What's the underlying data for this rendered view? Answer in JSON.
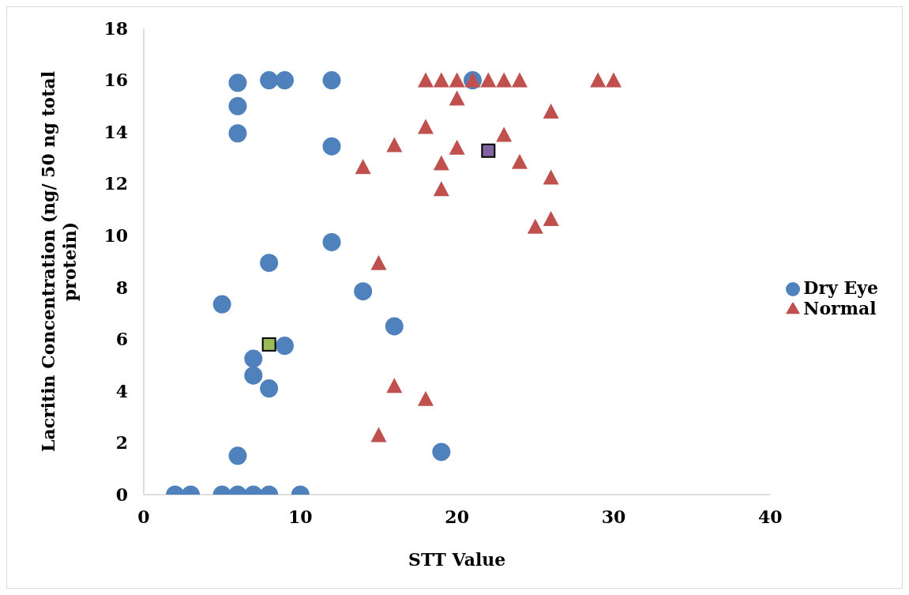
{
  "chart_data": {
    "type": "scatter",
    "xlabel": "STT Value",
    "ylabel": "Lacritin Concentration (ng/ 50 ng total protein)",
    "xlim": [
      0,
      40
    ],
    "xticks": [
      0,
      10,
      20,
      30,
      40
    ],
    "ylim": [
      0,
      18
    ],
    "yticks": [
      0,
      2,
      4,
      6,
      8,
      10,
      12,
      14,
      16,
      18
    ],
    "grid": false,
    "legend": "right",
    "series": [
      {
        "name": "Dry Eye",
        "color": "#4f81bd",
        "marker": "circle",
        "x": [
          6,
          8,
          9,
          12,
          21,
          6,
          6,
          12,
          12,
          8,
          5,
          14,
          16,
          9,
          7,
          7,
          8,
          6,
          19,
          2,
          3,
          5,
          6,
          7,
          8,
          10
        ],
        "values": [
          15.9,
          16,
          16,
          16,
          16,
          15,
          13.95,
          13.45,
          9.75,
          8.95,
          7.35,
          7.85,
          6.5,
          5.75,
          5.25,
          4.6,
          4.1,
          1.5,
          1.65,
          0,
          0,
          0,
          0,
          0,
          0,
          0
        ]
      },
      {
        "name": "Normal",
        "color": "#c0504d",
        "marker": "triangle",
        "x": [
          18,
          19,
          20,
          21,
          22,
          23,
          24,
          29,
          30,
          20,
          18,
          16,
          14,
          20,
          23,
          24,
          19,
          19,
          26,
          26,
          26,
          25,
          15,
          16,
          18,
          15
        ],
        "values": [
          16,
          16,
          16,
          16,
          16,
          16,
          16,
          16,
          16,
          15.3,
          14.2,
          13.5,
          12.65,
          13.4,
          13.9,
          12.85,
          12.8,
          11.8,
          14.8,
          12.25,
          10.65,
          10.35,
          8.95,
          4.2,
          3.7,
          2.3
        ]
      },
      {
        "color": "#9bbb59",
        "marker": "square",
        "x": [
          8
        ],
        "values": [
          5.8
        ]
      },
      {
        "color": "#8064a2",
        "marker": "square",
        "x": [
          22
        ],
        "values": [
          13.28
        ]
      }
    ]
  }
}
